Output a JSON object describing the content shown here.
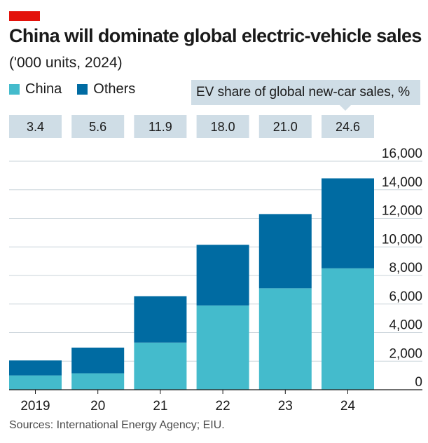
{
  "header": {
    "title": "China will dominate global electric-vehicle sales",
    "subtitle": "('000 units, 2024)"
  },
  "legend": [
    {
      "label": "China",
      "color": "#44bbcc"
    },
    {
      "label": "Others",
      "color": "#006ba2"
    }
  ],
  "share_label": "EV share of global new-car sales, %",
  "source": "Sources: International Energy Agency; EIU.",
  "colors": {
    "china": "#44bbcc",
    "others": "#006ba2",
    "share_box": "#cfdde6",
    "accent": "#e3120b"
  },
  "chart_data": {
    "type": "bar",
    "stacked": true,
    "title": "China will dominate global electric-vehicle sales",
    "subtitle": "('000 units, 2024)",
    "categories": [
      "2019",
      "20",
      "21",
      "22",
      "23",
      "24"
    ],
    "series": [
      {
        "name": "China",
        "values": [
          1000,
          1150,
          3300,
          5900,
          7100,
          8500
        ]
      },
      {
        "name": "Others",
        "values": [
          1050,
          1800,
          3250,
          4250,
          5200,
          6300
        ]
      }
    ],
    "ev_share_pct": [
      "3.4",
      "5.6",
      "11.9",
      "18.0",
      "21.0",
      "24.6"
    ],
    "y_ticks": [
      "16,000",
      "14,000",
      "12,000",
      "10,000",
      "8,000",
      "6,000",
      "4,000",
      "2,000",
      "0"
    ],
    "ylim": [
      0,
      16000
    ],
    "axis_position": "right",
    "grid": true
  }
}
